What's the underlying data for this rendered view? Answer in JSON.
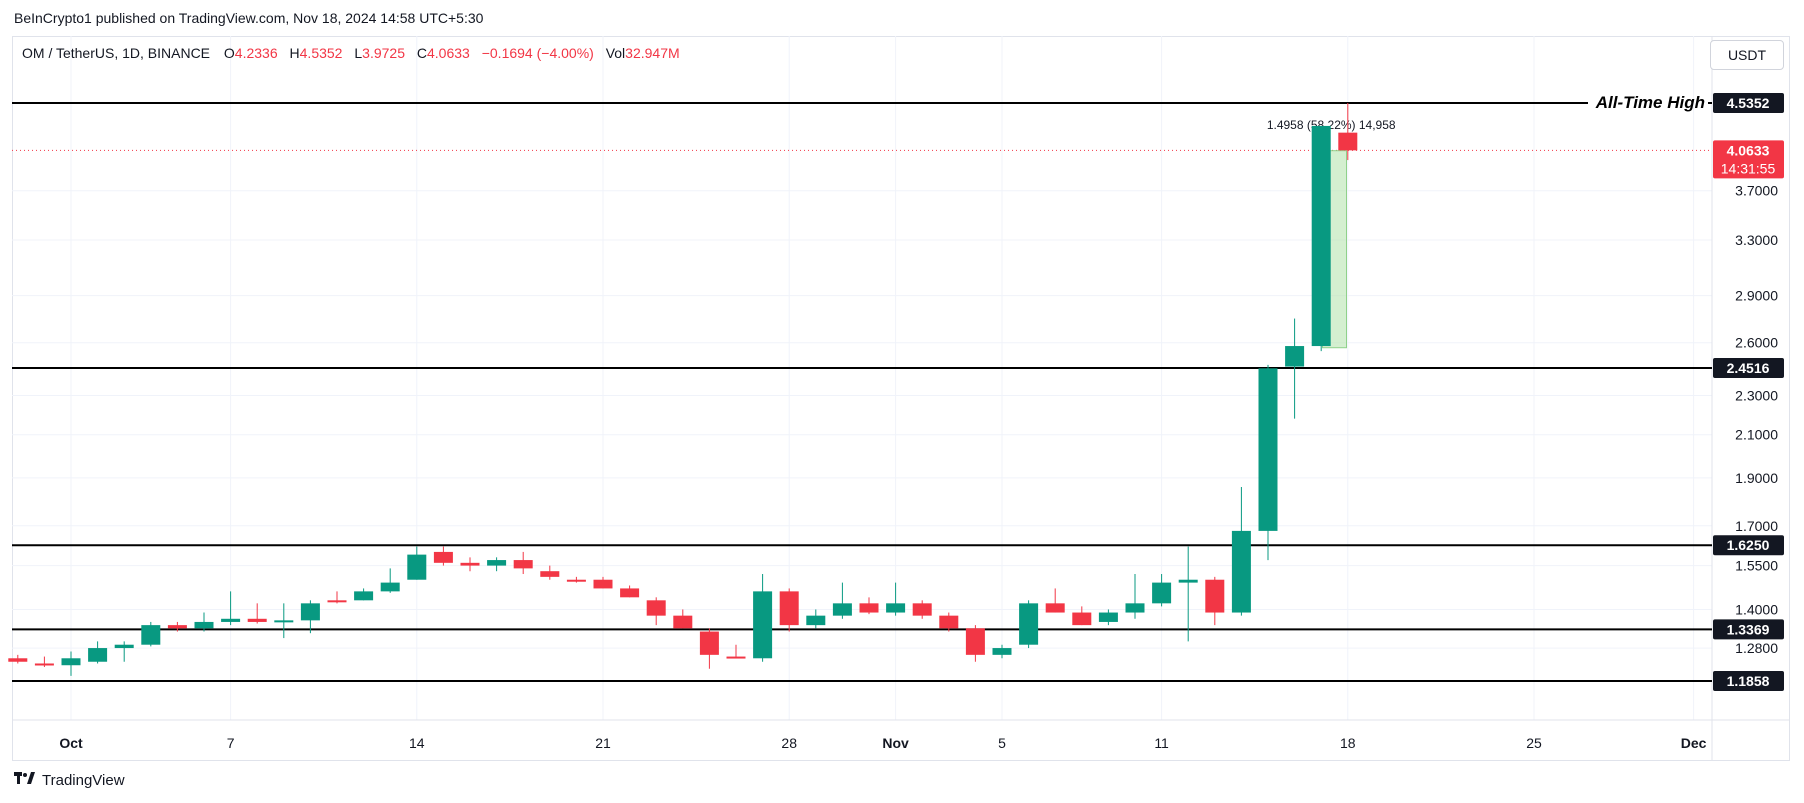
{
  "header": {
    "publisher": "BeInCrypto1 published on TradingView.com, Nov 18, 2024 14:58 UTC+5:30"
  },
  "legend": {
    "symbol": "OM / TetherUS, 1D, BINANCE",
    "open_label": "O",
    "open": "4.2336",
    "high_label": "H",
    "high": "4.5352",
    "low_label": "L",
    "low": "3.9725",
    "close_label": "C",
    "close": "4.0633",
    "change": "−0.1694 (−4.00%)",
    "vol_label": "Vol",
    "volume": "32.947M"
  },
  "currency_button": "USDT",
  "footer": {
    "brand": "TradingView"
  },
  "colors": {
    "up": "#089981",
    "down": "#f23645",
    "level": "#000000",
    "grid": "#f0f3fa",
    "measure": "#b7e4b0"
  },
  "chart_data": {
    "type": "candlestick",
    "title": "OM / TetherUS, 1D, BINANCE",
    "scale": "log",
    "y_ticks": [
      "1.1858",
      "1.2800",
      "1.4000",
      "1.5500",
      "1.7000",
      "1.9000",
      "2.1000",
      "2.3000",
      "2.6000",
      "2.9000",
      "3.3000",
      "3.7000"
    ],
    "x_ticks": [
      {
        "label": "Oct",
        "day": 0,
        "bold": true
      },
      {
        "label": "7",
        "day": 6
      },
      {
        "label": "14",
        "day": 13
      },
      {
        "label": "21",
        "day": 20
      },
      {
        "label": "28",
        "day": 27
      },
      {
        "label": "Nov",
        "day": 31,
        "bold": true
      },
      {
        "label": "5",
        "day": 35
      },
      {
        "label": "11",
        "day": 41
      },
      {
        "label": "18",
        "day": 48
      },
      {
        "label": "25",
        "day": 55
      },
      {
        "label": "Dec",
        "day": 61,
        "bold": true
      }
    ],
    "first_day_offset": -2,
    "candles": [
      {
        "o": 1.25,
        "h": 1.26,
        "l": 1.235,
        "c": 1.24
      },
      {
        "o": 1.235,
        "h": 1.255,
        "l": 1.225,
        "c": 1.23
      },
      {
        "o": 1.23,
        "h": 1.27,
        "l": 1.2,
        "c": 1.25
      },
      {
        "o": 1.24,
        "h": 1.3,
        "l": 1.235,
        "c": 1.28
      },
      {
        "o": 1.28,
        "h": 1.3,
        "l": 1.24,
        "c": 1.29
      },
      {
        "o": 1.29,
        "h": 1.36,
        "l": 1.285,
        "c": 1.35
      },
      {
        "o": 1.35,
        "h": 1.36,
        "l": 1.33,
        "c": 1.34
      },
      {
        "o": 1.34,
        "h": 1.39,
        "l": 1.33,
        "c": 1.36
      },
      {
        "o": 1.36,
        "h": 1.46,
        "l": 1.35,
        "c": 1.37
      },
      {
        "o": 1.37,
        "h": 1.42,
        "l": 1.355,
        "c": 1.36
      },
      {
        "o": 1.36,
        "h": 1.42,
        "l": 1.31,
        "c": 1.365
      },
      {
        "o": 1.365,
        "h": 1.43,
        "l": 1.325,
        "c": 1.42
      },
      {
        "o": 1.43,
        "h": 1.46,
        "l": 1.42,
        "c": 1.425
      },
      {
        "o": 1.43,
        "h": 1.47,
        "l": 1.43,
        "c": 1.46
      },
      {
        "o": 1.46,
        "h": 1.54,
        "l": 1.455,
        "c": 1.49
      },
      {
        "o": 1.5,
        "h": 1.62,
        "l": 1.5,
        "c": 1.59
      },
      {
        "o": 1.6,
        "h": 1.62,
        "l": 1.55,
        "c": 1.56
      },
      {
        "o": 1.56,
        "h": 1.58,
        "l": 1.53,
        "c": 1.55
      },
      {
        "o": 1.55,
        "h": 1.58,
        "l": 1.53,
        "c": 1.57
      },
      {
        "o": 1.57,
        "h": 1.6,
        "l": 1.52,
        "c": 1.54
      },
      {
        "o": 1.53,
        "h": 1.55,
        "l": 1.5,
        "c": 1.51
      },
      {
        "o": 1.5,
        "h": 1.51,
        "l": 1.49,
        "c": 1.495
      },
      {
        "o": 1.5,
        "h": 1.51,
        "l": 1.47,
        "c": 1.47
      },
      {
        "o": 1.47,
        "h": 1.48,
        "l": 1.44,
        "c": 1.44
      },
      {
        "o": 1.43,
        "h": 1.44,
        "l": 1.35,
        "c": 1.38
      },
      {
        "o": 1.38,
        "h": 1.4,
        "l": 1.34,
        "c": 1.34
      },
      {
        "o": 1.33,
        "h": 1.34,
        "l": 1.22,
        "c": 1.26
      },
      {
        "o": 1.255,
        "h": 1.29,
        "l": 1.25,
        "c": 1.25
      },
      {
        "o": 1.25,
        "h": 1.52,
        "l": 1.24,
        "c": 1.46
      },
      {
        "o": 1.46,
        "h": 1.47,
        "l": 1.33,
        "c": 1.35
      },
      {
        "o": 1.35,
        "h": 1.4,
        "l": 1.34,
        "c": 1.38
      },
      {
        "o": 1.38,
        "h": 1.49,
        "l": 1.37,
        "c": 1.42
      },
      {
        "o": 1.42,
        "h": 1.44,
        "l": 1.385,
        "c": 1.39
      },
      {
        "o": 1.39,
        "h": 1.49,
        "l": 1.38,
        "c": 1.42
      },
      {
        "o": 1.42,
        "h": 1.43,
        "l": 1.37,
        "c": 1.38
      },
      {
        "o": 1.38,
        "h": 1.39,
        "l": 1.33,
        "c": 1.34
      },
      {
        "o": 1.34,
        "h": 1.35,
        "l": 1.24,
        "c": 1.26
      },
      {
        "o": 1.26,
        "h": 1.29,
        "l": 1.25,
        "c": 1.28
      },
      {
        "o": 1.29,
        "h": 1.43,
        "l": 1.28,
        "c": 1.42
      },
      {
        "o": 1.42,
        "h": 1.47,
        "l": 1.39,
        "c": 1.39
      },
      {
        "o": 1.39,
        "h": 1.41,
        "l": 1.35,
        "c": 1.35
      },
      {
        "o": 1.36,
        "h": 1.4,
        "l": 1.35,
        "c": 1.39
      },
      {
        "o": 1.39,
        "h": 1.52,
        "l": 1.37,
        "c": 1.42
      },
      {
        "o": 1.42,
        "h": 1.52,
        "l": 1.41,
        "c": 1.49
      },
      {
        "o": 1.49,
        "h": 1.62,
        "l": 1.3,
        "c": 1.5
      },
      {
        "o": 1.5,
        "h": 1.51,
        "l": 1.35,
        "c": 1.39
      },
      {
        "o": 1.39,
        "h": 1.86,
        "l": 1.38,
        "c": 1.68
      },
      {
        "o": 1.68,
        "h": 2.47,
        "l": 1.57,
        "c": 2.45
      },
      {
        "o": 2.46,
        "h": 2.75,
        "l": 2.18,
        "c": 2.58
      },
      {
        "o": 2.58,
        "h": 4.3,
        "l": 2.55,
        "c": 4.3
      },
      {
        "o": 4.2336,
        "h": 4.5352,
        "l": 3.9725,
        "c": 4.0633
      }
    ],
    "levels": [
      {
        "value": 4.5352,
        "label": "4.5352",
        "name": "All-Time High"
      },
      {
        "value": 2.4516,
        "label": "2.4516"
      },
      {
        "value": 1.625,
        "label": "1.6250"
      },
      {
        "value": 1.3369,
        "label": "1.3369"
      },
      {
        "value": 1.1858,
        "label": "1.1858"
      }
    ],
    "last_price": {
      "value": 4.0633,
      "label": "4.0633",
      "countdown": "14:31:55"
    },
    "measure": {
      "from": 2.57,
      "to": 4.06,
      "text": "1.4958 (58.22%) 14,958"
    }
  }
}
